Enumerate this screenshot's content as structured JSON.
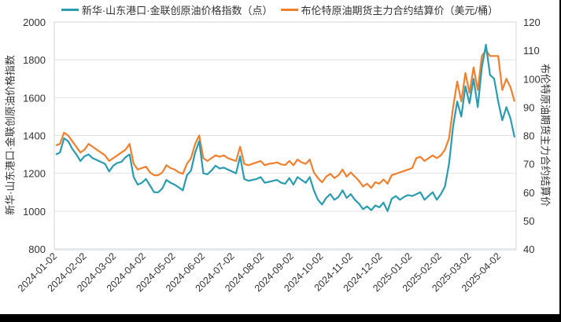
{
  "chart_data": {
    "type": "line",
    "title": "",
    "legend_position": "top",
    "grid": true,
    "x_tick_labels": [
      "2024-01-02",
      "2024-02-02",
      "2024-03-02",
      "2024-04-02",
      "2024-05-02",
      "2024-06-02",
      "2024-07-02",
      "2024-08-02",
      "2024-09-02",
      "2024-10-02",
      "2024-11-02",
      "2024-12-02",
      "2025-01-02",
      "2025-02-02",
      "2025-03-02",
      "2025-04-02"
    ],
    "left_axis": {
      "label": "新华·山东港口·金联创原油价格指数",
      "ylim": [
        800,
        2000
      ],
      "ticks": [
        800,
        1000,
        1200,
        1400,
        1600,
        1800,
        2000
      ]
    },
    "right_axis": {
      "label": "布伦特原油期货主力合约结算价",
      "ylim": [
        40,
        120
      ],
      "ticks": [
        40,
        50,
        60,
        70,
        80,
        90,
        100,
        110,
        120
      ]
    },
    "series": [
      {
        "name": "新华·山东港口·金联创原油价格指数（点）",
        "axis": "left",
        "color": "#2b9bb0",
        "values": [
          1300,
          1310,
          1385,
          1370,
          1330,
          1300,
          1265,
          1290,
          1300,
          1280,
          1270,
          1260,
          1250,
          1210,
          1240,
          1255,
          1260,
          1285,
          1300,
          1180,
          1140,
          1150,
          1170,
          1135,
          1100,
          1100,
          1120,
          1165,
          1150,
          1140,
          1125,
          1110,
          1190,
          1215,
          1310,
          1370,
          1200,
          1195,
          1215,
          1240,
          1225,
          1230,
          1220,
          1210,
          1200,
          1290,
          1170,
          1160,
          1165,
          1170,
          1180,
          1150,
          1155,
          1160,
          1165,
          1150,
          1145,
          1175,
          1140,
          1180,
          1165,
          1150,
          1180,
          1110,
          1060,
          1035,
          1070,
          1090,
          1060,
          1075,
          1110,
          1070,
          1090,
          1060,
          1040,
          1010,
          1025,
          1005,
          1030,
          1020,
          1045,
          1000,
          1065,
          1080,
          1060,
          1075,
          1085,
          1080,
          1090,
          1100,
          1060,
          1080,
          1100,
          1060,
          1090,
          1130,
          1250,
          1450,
          1580,
          1500,
          1660,
          1570,
          1700,
          1550,
          1760,
          1880,
          1720,
          1700,
          1580,
          1480,
          1550,
          1490,
          1390
        ]
      },
      {
        "name": "布伦特原油期货主力合约结算价（美元/桶）",
        "axis": "right",
        "color": "#f07f2e",
        "values": [
          76.5,
          77,
          81,
          80,
          78,
          76,
          74,
          75,
          77,
          76,
          75,
          74,
          73,
          71,
          72,
          73,
          74,
          75,
          77,
          70,
          68,
          68.5,
          69,
          67,
          66,
          66,
          67,
          69.5,
          68.5,
          68,
          67,
          66.5,
          70,
          72,
          77,
          80,
          72,
          71,
          72,
          73,
          72.5,
          73,
          72,
          71.5,
          71,
          76,
          70,
          69.5,
          70,
          70.5,
          71,
          69.5,
          70,
          70.2,
          70.5,
          69.8,
          69.6,
          71,
          69.5,
          71.5,
          70.5,
          70,
          71.5,
          67,
          65,
          63.5,
          65.5,
          66.5,
          65,
          66,
          68,
          65.5,
          67,
          65.5,
          64,
          62,
          63,
          61.5,
          63.5,
          63,
          64.5,
          63,
          66,
          66.5,
          67,
          67.5,
          68,
          68.5,
          72,
          72.5,
          71,
          72,
          73,
          72,
          73,
          75,
          79,
          90,
          99,
          92,
          102,
          95,
          104,
          96,
          108,
          110,
          108,
          108,
          108,
          96,
          100,
          97,
          92
        ]
      }
    ]
  },
  "legend": {
    "items": [
      {
        "label": "新华·山东港口·金联创原油价格指数（点）",
        "color": "#2b9bb0"
      },
      {
        "label": "布伦特原油期货主力合约结算价（美元/桶）",
        "color": "#f07f2e"
      }
    ]
  },
  "axes": {
    "left_title": "新华·山东港口·金联创原油价格指数",
    "right_title": "布伦特原油期货主力合约结算价"
  }
}
